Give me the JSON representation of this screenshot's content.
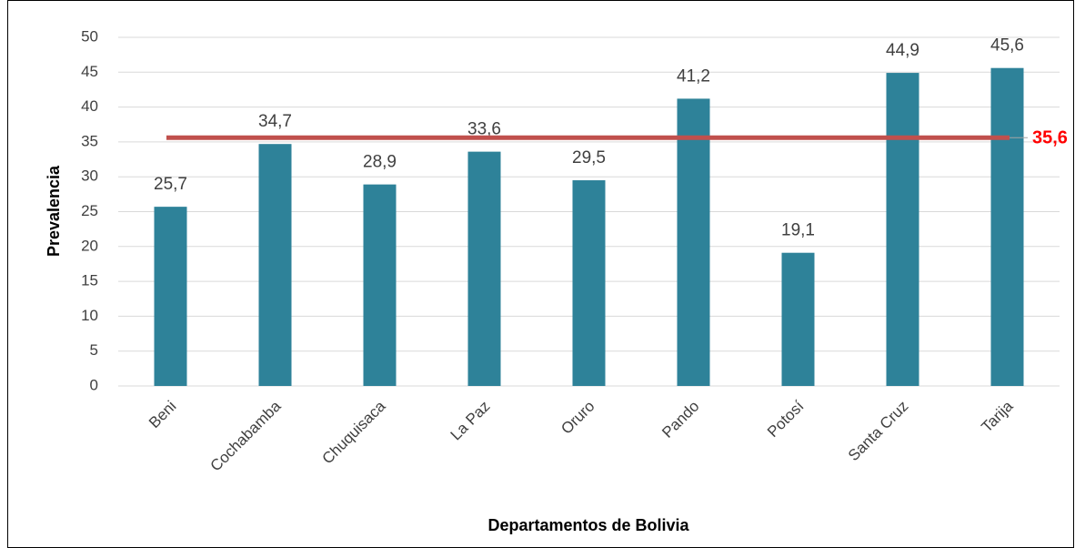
{
  "chart_data": {
    "type": "bar",
    "x_axis_label": "Departamentos de Bolivia",
    "y_axis_label": "Prevalencia",
    "categories": [
      "Beni",
      "Cochabamba",
      "Chuquisaca",
      "La Paz",
      "Oruro",
      "Pando",
      "Potosí",
      "Santa Cruz",
      "Tarija"
    ],
    "values": [
      25.7,
      34.7,
      28.9,
      33.6,
      29.5,
      41.2,
      19.1,
      44.9,
      45.6
    ],
    "value_labels": [
      "25,7",
      "34,7",
      "28,9",
      "33,6",
      "29,5",
      "41,2",
      "19,1",
      "44,9",
      "45,6"
    ],
    "color": "#2e8299",
    "ylim": [
      0,
      50
    ],
    "yticks": [
      0,
      5,
      10,
      15,
      20,
      25,
      30,
      35,
      40,
      45,
      50
    ],
    "grid": true,
    "reference_line": {
      "value": 35.6,
      "label": "35,6",
      "color": "#c0504d",
      "label_color": "#ff0000"
    }
  }
}
